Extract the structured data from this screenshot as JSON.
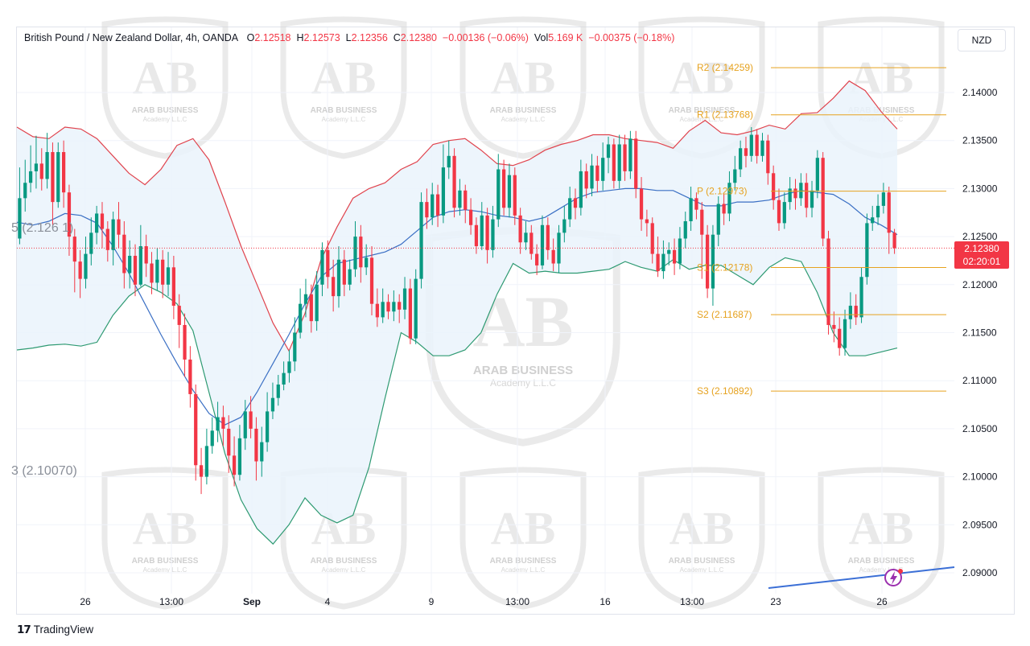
{
  "header": {
    "title": "British Pound / New Zealand Dollar, 4h, OANDA",
    "open_key": "O",
    "open": "2.12518",
    "high_key": "H",
    "high": "2.12573",
    "low_key": "L",
    "low": "2.12356",
    "close_key": "C",
    "close": "2.12380",
    "change": "−0.00136 (−0.06%)",
    "vol_key": "Vol",
    "vol": "5.169 K",
    "vol_change": "−0.00375 (−0.18%)"
  },
  "currency_unit": "NZD",
  "current_price": {
    "value": "2.12380",
    "countdown": "02:20:01"
  },
  "left_labels": {
    "upper": "5 (2.126 1)",
    "lower": "3 (2.10070)"
  },
  "watermark": {
    "line1": "ARAB BUSINESS",
    "line2": "Academy L.L.C"
  },
  "branding": {
    "mark": "17",
    "name": "TradingView"
  },
  "colors": {
    "up": "#089981",
    "down": "#f23645",
    "upper_band": "#e0434d",
    "basis": "#3a6fc4",
    "lower_band": "#2e9a72",
    "pivot": "#e6a21f",
    "band_fill": "#eaf3fb",
    "trend": "#3b6fd6"
  },
  "chart_data": {
    "type": "candlestick",
    "y_axis": {
      "ticks": [
        "2.14000",
        "2.13500",
        "2.13000",
        "2.12500",
        "2.12000",
        "2.11500",
        "2.11000",
        "2.10500",
        "2.10000",
        "2.09500",
        "2.09000"
      ],
      "range": [
        2.0876,
        2.1466
      ]
    },
    "x_axis": {
      "ticks": [
        "26",
        "13:00",
        "Sep",
        "4",
        "9",
        "13:00",
        "16",
        "13:00",
        "23",
        "26"
      ]
    },
    "pivots": [
      {
        "name": "R2",
        "label": "R2 (2.14259)",
        "value": 2.14259
      },
      {
        "name": "R1",
        "label": "R1 (2.13768)",
        "value": 2.13768
      },
      {
        "name": "P",
        "label": "P (2.12973)",
        "value": 2.12973
      },
      {
        "name": "S1",
        "label": "S1 (2.12178)",
        "value": 2.12178
      },
      {
        "name": "S2",
        "label": "S2 (2.11687)",
        "value": 2.11687
      },
      {
        "name": "S3",
        "label": "S3 (2.10892)",
        "value": 2.10892
      }
    ],
    "candles": [
      [
        2.1248,
        2.129,
        2.1322,
        2.1242
      ],
      [
        2.129,
        2.1306,
        2.133,
        2.1276
      ],
      [
        2.1306,
        2.1318,
        2.1345,
        2.1296
      ],
      [
        2.1318,
        2.1326,
        2.1355,
        2.13
      ],
      [
        2.1326,
        2.131,
        2.1342,
        2.1298
      ],
      [
        2.131,
        2.1338,
        2.1358,
        2.13
      ],
      [
        2.1338,
        2.1286,
        2.1348,
        2.1262
      ],
      [
        2.1286,
        2.1338,
        2.1348,
        2.128
      ],
      [
        2.1338,
        2.1296,
        2.135,
        2.128
      ],
      [
        2.1296,
        2.125,
        2.1304,
        2.123
      ],
      [
        2.125,
        2.1224,
        2.1258,
        2.1192
      ],
      [
        2.1224,
        2.1206,
        2.1236,
        2.1186
      ],
      [
        2.1206,
        2.1232,
        2.125,
        2.1196
      ],
      [
        2.1232,
        2.1254,
        2.127,
        2.122
      ],
      [
        2.1254,
        2.1274,
        2.1282,
        2.1242
      ],
      [
        2.1274,
        2.1258,
        2.1286,
        2.1238
      ],
      [
        2.1258,
        2.1236,
        2.1266,
        2.1224
      ],
      [
        2.1236,
        2.1268,
        2.1276,
        2.122
      ],
      [
        2.1268,
        2.1252,
        2.1286,
        2.1238
      ],
      [
        2.1252,
        2.1212,
        2.1266,
        2.1196
      ],
      [
        2.1212,
        2.123,
        2.1246,
        2.1196
      ],
      [
        2.123,
        2.12,
        2.1242,
        2.1188
      ],
      [
        2.12,
        2.124,
        2.1262,
        2.1198
      ],
      [
        2.124,
        2.1222,
        2.1252,
        2.1208
      ],
      [
        2.1222,
        2.1202,
        2.1234,
        2.119
      ],
      [
        2.1202,
        2.1226,
        2.1238,
        2.1194
      ],
      [
        2.1226,
        2.12,
        2.1236,
        2.1186
      ],
      [
        2.12,
        2.1218,
        2.1234,
        2.1188
      ],
      [
        2.1218,
        2.1178,
        2.123,
        2.1164
      ],
      [
        2.1178,
        2.1158,
        2.119,
        2.1134
      ],
      [
        2.1158,
        2.1122,
        2.117,
        2.1104
      ],
      [
        2.1122,
        2.1086,
        2.1136,
        2.1072
      ],
      [
        2.1086,
        2.1012,
        2.1096,
        2.0996
      ],
      [
        2.1012,
        2.1,
        2.103,
        2.0982
      ],
      [
        2.1,
        2.1032,
        2.105,
        2.0992
      ],
      [
        2.1032,
        2.1048,
        2.1062,
        2.1024
      ],
      [
        2.1048,
        2.1062,
        2.1078,
        2.1036
      ],
      [
        2.1062,
        2.105,
        2.1074,
        2.1032
      ],
      [
        2.105,
        2.1022,
        2.1064,
        2.1004
      ],
      [
        2.1022,
        2.1002,
        2.1042,
        2.099
      ],
      [
        2.1002,
        2.104,
        2.1054,
        2.0996
      ],
      [
        2.104,
        2.1068,
        2.108,
        2.1028
      ],
      [
        2.1068,
        2.105,
        2.1084,
        2.104
      ],
      [
        2.105,
        2.1016,
        2.1062,
        2.0996
      ],
      [
        2.1016,
        2.1036,
        2.1052,
        2.1
      ],
      [
        2.1036,
        2.1068,
        2.1088,
        2.1026
      ],
      [
        2.1068,
        2.1082,
        2.1098,
        2.106
      ],
      [
        2.1082,
        2.1096,
        2.1106,
        2.1074
      ],
      [
        2.1096,
        2.1108,
        2.112,
        2.109
      ],
      [
        2.1108,
        2.112,
        2.1132,
        2.1098
      ],
      [
        2.112,
        2.115,
        2.1166,
        2.111
      ],
      [
        2.115,
        2.118,
        2.1196,
        2.1144
      ],
      [
        2.118,
        2.119,
        2.1206,
        2.1166
      ],
      [
        2.119,
        2.1162,
        2.12,
        2.115
      ],
      [
        2.1162,
        2.12,
        2.1214,
        2.1152
      ],
      [
        2.12,
        2.1236,
        2.1244,
        2.1188
      ],
      [
        2.1236,
        2.1208,
        2.1246,
        2.1196
      ],
      [
        2.1208,
        2.1188,
        2.1226,
        2.1172
      ],
      [
        2.1188,
        2.1226,
        2.124,
        2.1176
      ],
      [
        2.1226,
        2.12,
        2.1236,
        2.1188
      ],
      [
        2.12,
        2.1216,
        2.1226,
        2.1194
      ],
      [
        2.1216,
        2.125,
        2.1266,
        2.1208
      ],
      [
        2.125,
        2.1218,
        2.1262,
        2.1202
      ],
      [
        2.1218,
        2.1228,
        2.1242,
        2.121
      ],
      [
        2.1228,
        2.118,
        2.124,
        2.1168
      ],
      [
        2.118,
        2.1166,
        2.1196,
        2.1156
      ],
      [
        2.1166,
        2.1182,
        2.1196,
        2.116
      ],
      [
        2.1182,
        2.1172,
        2.119,
        2.1164
      ],
      [
        2.1172,
        2.1182,
        2.1194,
        2.1162
      ],
      [
        2.1182,
        2.1174,
        2.119,
        2.116
      ],
      [
        2.1174,
        2.1196,
        2.1208,
        2.1164
      ],
      [
        2.1196,
        2.1144,
        2.1206,
        2.1138
      ],
      [
        2.1144,
        2.1206,
        2.1216,
        2.1138
      ],
      [
        2.1206,
        2.1286,
        2.1296,
        2.1196
      ],
      [
        2.1286,
        2.127,
        2.13,
        2.1258
      ],
      [
        2.127,
        2.1294,
        2.1306,
        2.1262
      ],
      [
        2.1294,
        2.1272,
        2.1304,
        2.126
      ],
      [
        2.1272,
        2.1322,
        2.1346,
        2.1264
      ],
      [
        2.1322,
        2.1334,
        2.135,
        2.131
      ],
      [
        2.1334,
        2.128,
        2.1342,
        2.127
      ],
      [
        2.128,
        2.1298,
        2.131,
        2.1272
      ],
      [
        2.1298,
        2.1278,
        2.1304,
        2.1264
      ],
      [
        2.1278,
        2.1262,
        2.129,
        2.1252
      ],
      [
        2.1262,
        2.124,
        2.127,
        2.1232
      ],
      [
        2.124,
        2.1272,
        2.1286,
        2.1236
      ],
      [
        2.1272,
        2.1236,
        2.128,
        2.1222
      ],
      [
        2.1236,
        2.1268,
        2.1282,
        2.1228
      ],
      [
        2.1268,
        2.132,
        2.1336,
        2.126
      ],
      [
        2.132,
        2.128,
        2.133,
        2.1272
      ],
      [
        2.128,
        2.1314,
        2.1326,
        2.127
      ],
      [
        2.1314,
        2.1272,
        2.1322,
        2.1262
      ],
      [
        2.1272,
        2.1244,
        2.128,
        2.1232
      ],
      [
        2.1244,
        2.1254,
        2.1266,
        2.1236
      ],
      [
        2.1254,
        2.1232,
        2.1262,
        2.1226
      ],
      [
        2.1232,
        2.122,
        2.1242,
        2.121
      ],
      [
        2.122,
        2.1262,
        2.1272,
        2.1216
      ],
      [
        2.1262,
        2.1236,
        2.127,
        2.1226
      ],
      [
        2.1236,
        2.1222,
        2.1248,
        2.1214
      ],
      [
        2.1222,
        2.1254,
        2.1262,
        2.1212
      ],
      [
        2.1254,
        2.1268,
        2.1282,
        2.1244
      ],
      [
        2.1268,
        2.129,
        2.1302,
        2.126
      ],
      [
        2.129,
        2.128,
        2.13,
        2.1268
      ],
      [
        2.128,
        2.1318,
        2.133,
        2.1272
      ],
      [
        2.1318,
        2.13,
        2.1326,
        2.129
      ],
      [
        2.13,
        2.1324,
        2.1336,
        2.1292
      ],
      [
        2.1324,
        2.1308,
        2.1334,
        2.1296
      ],
      [
        2.1308,
        2.1332,
        2.1348,
        2.1298
      ],
      [
        2.1332,
        2.1346,
        2.1354,
        2.1316
      ],
      [
        2.1346,
        2.1308,
        2.1352,
        2.13
      ],
      [
        2.1308,
        2.1346,
        2.1356,
        2.13
      ],
      [
        2.1346,
        2.1318,
        2.1356,
        2.1308
      ],
      [
        2.1318,
        2.1352,
        2.136,
        2.131
      ],
      [
        2.1352,
        2.13,
        2.136,
        2.129
      ],
      [
        2.13,
        2.1268,
        2.1312,
        2.1256
      ],
      [
        2.1268,
        2.1264,
        2.1278,
        2.125
      ],
      [
        2.1264,
        2.1232,
        2.127,
        2.1222
      ],
      [
        2.1232,
        2.1214,
        2.125,
        2.1208
      ],
      [
        2.1214,
        2.1232,
        2.1246,
        2.1206
      ],
      [
        2.1232,
        2.1236,
        2.1244,
        2.122
      ],
      [
        2.1236,
        2.1222,
        2.1248,
        2.121
      ],
      [
        2.1222,
        2.1248,
        2.126,
        2.1216
      ],
      [
        2.1248,
        2.1266,
        2.1276,
        2.1238
      ],
      [
        2.1266,
        2.129,
        2.1302,
        2.1256
      ],
      [
        2.129,
        2.1278,
        2.1296,
        2.1268
      ],
      [
        2.1278,
        2.1252,
        2.1286,
        2.1206
      ],
      [
        2.1252,
        2.1196,
        2.1262,
        2.1186
      ],
      [
        2.1196,
        2.1252,
        2.1262,
        2.1178
      ],
      [
        2.1252,
        2.1284,
        2.1292,
        2.124
      ],
      [
        2.1284,
        2.1274,
        2.1294,
        2.1262
      ],
      [
        2.1274,
        2.1306,
        2.1318,
        2.1266
      ],
      [
        2.1306,
        2.132,
        2.1334,
        2.1298
      ],
      [
        2.132,
        2.1342,
        2.135,
        2.1312
      ],
      [
        2.1342,
        2.1334,
        2.1354,
        2.1322
      ],
      [
        2.1334,
        2.1356,
        2.1364,
        2.1328
      ],
      [
        2.1356,
        2.1334,
        2.1362,
        2.1326
      ],
      [
        2.1334,
        2.135,
        2.1358,
        2.1328
      ],
      [
        2.135,
        2.1316,
        2.1356,
        2.1304
      ],
      [
        2.1316,
        2.1288,
        2.1324,
        2.1278
      ],
      [
        2.1288,
        2.1264,
        2.13,
        2.1256
      ],
      [
        2.1264,
        2.1286,
        2.1296,
        2.1258
      ],
      [
        2.1286,
        2.13,
        2.1312,
        2.1278
      ],
      [
        2.13,
        2.129,
        2.131,
        2.1278
      ],
      [
        2.129,
        2.1306,
        2.1316,
        2.1282
      ],
      [
        2.1306,
        2.128,
        2.1316,
        2.127
      ],
      [
        2.128,
        2.1298,
        2.1308,
        2.127
      ],
      [
        2.1298,
        2.1332,
        2.134,
        2.129
      ],
      [
        2.1332,
        2.1248,
        2.1338,
        2.124
      ],
      [
        2.1248,
        2.1158,
        2.1256,
        2.1148
      ],
      [
        2.1158,
        2.1154,
        2.1172,
        2.114
      ],
      [
        2.1154,
        2.1134,
        2.1166,
        2.1126
      ],
      [
        2.1134,
        2.1164,
        2.1174,
        2.1126
      ],
      [
        2.1164,
        2.1178,
        2.1192,
        2.1154
      ],
      [
        2.1178,
        2.1166,
        2.119,
        2.1158
      ],
      [
        2.1166,
        2.1208,
        2.1218,
        2.116
      ],
      [
        2.1208,
        2.1264,
        2.1274,
        2.12
      ],
      [
        2.1264,
        2.127,
        2.1282,
        2.1256
      ],
      [
        2.127,
        2.1282,
        2.1294,
        2.1262
      ],
      [
        2.1282,
        2.1296,
        2.1306,
        2.1274
      ],
      [
        2.1296,
        2.1254,
        2.1302,
        2.1232
      ],
      [
        2.1254,
        2.1238,
        2.1258,
        2.1232
      ]
    ],
    "upper_band": [
      2.1364,
      2.1354,
      2.1352,
      2.1364,
      2.1362,
      2.1352,
      2.1334,
      2.1316,
      2.1304,
      2.132,
      2.1345,
      2.1352,
      2.133,
      2.1286,
      2.124,
      2.12,
      2.116,
      2.1131,
      2.117,
      2.1226,
      2.126,
      2.129,
      2.13,
      2.1306,
      2.132,
      2.1328,
      2.1346,
      2.135,
      2.1352,
      2.134,
      2.1326,
      2.1324,
      2.133,
      2.134,
      2.1346,
      2.135,
      2.1356,
      2.1356,
      2.1352,
      2.135,
      2.1348,
      2.1342,
      2.136,
      2.1371,
      2.1358,
      2.1356,
      2.136,
      2.1366,
      2.1362,
      2.1378,
      2.1379,
      2.1394,
      2.1412,
      2.1402,
      2.138,
      2.1362
    ],
    "basis": [
      2.1265,
      2.1262,
      2.1266,
      2.1274,
      2.1272,
      2.1264,
      2.124,
      2.1212,
      2.118,
      2.1148,
      2.1118,
      2.109,
      2.1066,
      2.1054,
      2.1062,
      2.1088,
      2.1118,
      2.1148,
      2.118,
      2.1208,
      2.1222,
      2.1226,
      2.123,
      2.1234,
      2.1242,
      2.1256,
      2.127,
      2.1276,
      2.1278,
      2.1276,
      2.1272,
      2.127,
      2.1266,
      2.127,
      2.128,
      2.129,
      2.1296,
      2.1298,
      2.13,
      2.13,
      2.1298,
      2.1298,
      2.129,
      2.1282,
      2.1282,
      2.1286,
      2.1286,
      2.1288,
      2.1294,
      2.1298,
      2.1296,
      2.1294,
      2.1284,
      2.127,
      2.1262,
      2.1252
    ],
    "lower_band": [
      2.1132,
      2.1134,
      2.1137,
      2.1138,
      2.1136,
      2.114,
      2.1168,
      2.1188,
      2.12,
      2.1192,
      2.118,
      2.1152,
      2.1088,
      2.1024,
      2.0976,
      2.0946,
      2.093,
      2.095,
      2.0978,
      2.096,
      2.0952,
      2.096,
      2.101,
      2.1082,
      2.115,
      2.114,
      2.1126,
      2.1126,
      2.1132,
      2.115,
      2.119,
      2.1222,
      2.1212,
      2.1214,
      2.1212,
      2.1212,
      2.1214,
      2.1216,
      2.1224,
      2.1218,
      2.1214,
      2.1226,
      2.1216,
      2.122,
      2.122,
      2.121,
      2.12,
      2.1218,
      2.1228,
      2.1224,
      2.1192,
      2.115,
      2.1126,
      2.1126,
      2.113,
      2.1134
    ]
  }
}
